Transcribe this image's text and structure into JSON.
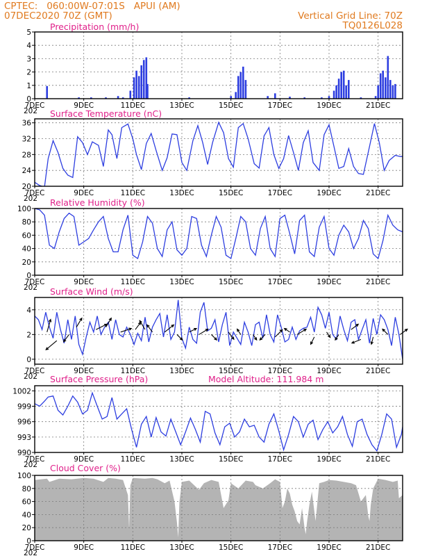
{
  "header": {
    "line1_left": "CPTEC:   060:00W-07:01S   APUI (AM)",
    "line2_left": "07DEC2020 70Z (GMT)",
    "line1_right": "Vertical Grid Line: 70Z",
    "line2_right": "TQ0126L028"
  },
  "colors": {
    "header": "#e07a1f",
    "title": "#e0208a",
    "series": "#2d3ee0",
    "cloud": "#b4b4b4",
    "wind_arrow": "#000000"
  },
  "x_axis": {
    "tick_labels": [
      "7DEC",
      "9DEC",
      "11DEC",
      "13DEC",
      "15DEC",
      "17DEC",
      "19DEC",
      "21DEC"
    ],
    "tick_days": [
      7,
      9,
      11,
      13,
      15,
      17,
      19,
      21
    ],
    "range_days": [
      7,
      22
    ],
    "sub_label": "202"
  },
  "chart_data": [
    {
      "type": "bar",
      "title": "Precipitation (mm/h)",
      "ylim": [
        0,
        5
      ],
      "yticks": [
        0,
        1,
        2,
        3,
        4,
        5
      ],
      "x": [
        7.5,
        8.8,
        9.3,
        9.9,
        10.4,
        10.6,
        10.9,
        11.05,
        11.15,
        11.25,
        11.35,
        11.45,
        11.55,
        11.6,
        13.3,
        15.0,
        15.2,
        15.3,
        15.4,
        15.5,
        15.6,
        16.5,
        16.8,
        17.4,
        18.0,
        18.7,
        19.0,
        19.2,
        19.3,
        19.4,
        19.5,
        19.6,
        19.7,
        19.8,
        20.3,
        20.9,
        21.0,
        21.1,
        21.2,
        21.3,
        21.4,
        21.5,
        21.6,
        21.7
      ],
      "values": [
        0.95,
        0.1,
        0.1,
        0.1,
        0.2,
        0.1,
        0.6,
        1.6,
        2.1,
        1.7,
        2.5,
        2.9,
        3.1,
        1.1,
        0.1,
        0.2,
        0.5,
        1.7,
        2.0,
        2.4,
        1.4,
        0.2,
        0.4,
        0.15,
        0.1,
        0.1,
        0.2,
        0.6,
        1.0,
        1.5,
        2.0,
        2.1,
        1.0,
        1.4,
        0.1,
        0.2,
        1.0,
        1.9,
        2.1,
        1.6,
        3.2,
        1.4,
        1.0,
        1.1
      ]
    },
    {
      "type": "line",
      "title": "Surface Temperature (nC)",
      "ylim": [
        20,
        37
      ],
      "yticks": [
        20,
        24,
        28,
        32,
        36
      ],
      "x": [
        7.0,
        7.2,
        7.4,
        7.55,
        7.75,
        7.95,
        8.15,
        8.35,
        8.55,
        8.75,
        8.95,
        9.15,
        9.35,
        9.6,
        9.8,
        10.0,
        10.15,
        10.35,
        10.55,
        10.8,
        11.0,
        11.15,
        11.35,
        11.55,
        11.75,
        11.95,
        12.2,
        12.4,
        12.6,
        12.8,
        13.0,
        13.2,
        13.45,
        13.65,
        13.85,
        14.05,
        14.25,
        14.5,
        14.7,
        14.9,
        15.1,
        15.3,
        15.5,
        15.7,
        15.95,
        16.15,
        16.35,
        16.55,
        16.75,
        16.95,
        17.15,
        17.35,
        17.55,
        17.75,
        17.95,
        18.15,
        18.35,
        18.6,
        18.8,
        19.0,
        19.2,
        19.4,
        19.6,
        19.8,
        20.0,
        20.2,
        20.4,
        20.65,
        20.85,
        21.05,
        21.25,
        21.45,
        21.7,
        21.9,
        22.0
      ],
      "values": [
        21.0,
        20.2,
        19.8,
        27.0,
        31.5,
        28.5,
        24.5,
        22.8,
        22.2,
        32.5,
        31.0,
        28.0,
        31.2,
        30.3,
        25.0,
        34.2,
        33.0,
        27.0,
        34.8,
        35.7,
        32.0,
        28.0,
        24.2,
        30.8,
        33.3,
        29.0,
        24.0,
        27.2,
        33.2,
        33.0,
        26.0,
        24.0,
        31.5,
        35.3,
        31.0,
        25.5,
        31.0,
        36.1,
        33.5,
        27.0,
        24.8,
        34.8,
        35.8,
        32.0,
        25.7,
        24.6,
        32.7,
        34.8,
        28.0,
        24.5,
        27.0,
        32.8,
        28.5,
        24.0,
        31.0,
        34.0,
        26.0,
        24.0,
        33.0,
        35.5,
        30.0,
        24.5,
        25.0,
        29.5,
        25.0,
        23.2,
        23.0,
        30.0,
        35.8,
        31.0,
        24.0,
        26.5,
        27.8,
        27.5,
        27.5
      ]
    },
    {
      "type": "line",
      "title": "Relative Humidity (%)",
      "ylim": [
        0,
        100
      ],
      "yticks": [
        0,
        20,
        40,
        60,
        80,
        100
      ],
      "x": [
        7.0,
        7.2,
        7.4,
        7.6,
        7.8,
        8.0,
        8.2,
        8.4,
        8.6,
        8.8,
        9.0,
        9.2,
        9.4,
        9.6,
        9.8,
        10.0,
        10.2,
        10.4,
        10.6,
        10.8,
        11.0,
        11.2,
        11.4,
        11.6,
        11.8,
        12.0,
        12.2,
        12.4,
        12.6,
        12.8,
        13.0,
        13.2,
        13.4,
        13.6,
        13.8,
        14.0,
        14.2,
        14.4,
        14.6,
        14.8,
        15.0,
        15.2,
        15.4,
        15.6,
        15.8,
        16.0,
        16.2,
        16.4,
        16.6,
        16.8,
        17.0,
        17.2,
        17.4,
        17.6,
        17.8,
        18.0,
        18.2,
        18.4,
        18.6,
        18.8,
        19.0,
        19.2,
        19.4,
        19.6,
        19.8,
        20.0,
        20.2,
        20.4,
        20.6,
        20.8,
        21.0,
        21.2,
        21.4,
        21.6,
        21.8,
        22.0
      ],
      "values": [
        100,
        98,
        90,
        45,
        40,
        65,
        85,
        93,
        88,
        45,
        50,
        55,
        68,
        80,
        88,
        55,
        35,
        35,
        68,
        90,
        30,
        25,
        50,
        88,
        78,
        40,
        28,
        68,
        80,
        38,
        30,
        40,
        88,
        85,
        45,
        28,
        60,
        88,
        72,
        30,
        25,
        55,
        88,
        80,
        40,
        30,
        70,
        88,
        40,
        28,
        85,
        90,
        62,
        32,
        82,
        90,
        35,
        28,
        72,
        88,
        40,
        30,
        60,
        75,
        65,
        40,
        55,
        82,
        70,
        32,
        25,
        52,
        90,
        75,
        68,
        65
      ]
    },
    {
      "type": "line",
      "title": "Surface Wind (m/s)",
      "ylim": [
        -0.4,
        5
      ],
      "yticks": [
        0,
        2,
        4
      ],
      "x": [
        7.0,
        7.15,
        7.3,
        7.45,
        7.6,
        7.75,
        7.9,
        8.05,
        8.2,
        8.35,
        8.5,
        8.65,
        8.8,
        8.95,
        9.1,
        9.25,
        9.4,
        9.55,
        9.7,
        9.85,
        10.0,
        10.15,
        10.3,
        10.45,
        10.6,
        10.75,
        10.9,
        11.05,
        11.2,
        11.35,
        11.5,
        11.65,
        11.8,
        11.95,
        12.1,
        12.25,
        12.4,
        12.55,
        12.7,
        12.85,
        13.0,
        13.15,
        13.3,
        13.45,
        13.6,
        13.75,
        13.9,
        14.05,
        14.2,
        14.35,
        14.5,
        14.65,
        14.8,
        14.95,
        15.1,
        15.25,
        15.4,
        15.55,
        15.7,
        15.85,
        16.0,
        16.15,
        16.3,
        16.45,
        16.6,
        16.75,
        16.9,
        17.05,
        17.2,
        17.35,
        17.5,
        17.65,
        17.8,
        17.95,
        18.1,
        18.25,
        18.4,
        18.55,
        18.7,
        18.85,
        19.0,
        19.15,
        19.3,
        19.45,
        19.6,
        19.75,
        19.9,
        20.05,
        20.2,
        20.35,
        20.5,
        20.65,
        20.8,
        20.95,
        21.1,
        21.25,
        21.4,
        21.55,
        21.7,
        21.85,
        22.0
      ],
      "values": [
        3.5,
        3.2,
        2.4,
        3.8,
        2.6,
        1.7,
        3.8,
        2.4,
        1.3,
        3.2,
        1.6,
        3.5,
        1.2,
        0.4,
        1.8,
        3.0,
        2.2,
        3.5,
        2.0,
        2.6,
        3.0,
        1.6,
        3.2,
        2.0,
        1.8,
        2.6,
        2.0,
        1.2,
        2.1,
        1.5,
        3.4,
        1.4,
        2.6,
        3.2,
        3.7,
        1.8,
        3.6,
        1.6,
        2.2,
        4.8,
        1.7,
        0.9,
        2.6,
        1.6,
        1.3,
        3.8,
        4.6,
        2.3,
        2.5,
        3.2,
        1.4,
        2.8,
        3.8,
        1.1,
        2.2,
        1.7,
        1.2,
        3.0,
        2.2,
        1.1,
        2.8,
        3.0,
        1.7,
        3.6,
        2.0,
        1.4,
        3.6,
        2.6,
        1.4,
        1.6,
        2.6,
        1.6,
        2.3,
        2.5,
        2.6,
        3.4,
        2.2,
        4.2,
        3.6,
        2.5,
        3.8,
        2.0,
        1.6,
        3.5,
        2.4,
        1.5,
        3.0,
        3.2,
        1.6,
        2.4,
        3.2,
        1.3,
        3.3,
        2.0,
        3.6,
        3.2,
        2.4,
        1.1,
        3.4,
        2.0,
        0.0
      ],
      "arrows": [
        {
          "x": 7.5,
          "y": 2.2,
          "u": 2,
          "v": 7
        },
        {
          "x": 7.9,
          "y": 1.5,
          "u": -6,
          "v": -5
        },
        {
          "x": 8.4,
          "y": 2.0,
          "u": -3,
          "v": -4
        },
        {
          "x": 8.7,
          "y": 2.6,
          "u": 3,
          "v": 5
        },
        {
          "x": 9.5,
          "y": 2.4,
          "u": 6,
          "v": 3
        },
        {
          "x": 9.9,
          "y": 2.6,
          "u": 3,
          "v": 5
        },
        {
          "x": 10.5,
          "y": 2.2,
          "u": 6,
          "v": 2
        },
        {
          "x": 11.1,
          "y": 2.4,
          "u": 3,
          "v": 4
        },
        {
          "x": 11.5,
          "y": 2.4,
          "u": -3,
          "v": 5
        },
        {
          "x": 11.8,
          "y": 2.2,
          "u": -3,
          "v": 4
        },
        {
          "x": 12.3,
          "y": 2.2,
          "u": 5,
          "v": 4
        },
        {
          "x": 12.8,
          "y": 2.0,
          "u": 3,
          "v": -3
        },
        {
          "x": 13.3,
          "y": 2.2,
          "u": 4,
          "v": 2
        },
        {
          "x": 13.7,
          "y": 2.0,
          "u": 5,
          "v": 3
        },
        {
          "x": 14.2,
          "y": 2.0,
          "u": 3,
          "v": -3
        },
        {
          "x": 14.9,
          "y": 2.2,
          "u": 3,
          "v": -4
        },
        {
          "x": 15.4,
          "y": 2.0,
          "u": -2,
          "v": 3
        },
        {
          "x": 15.9,
          "y": 2.0,
          "u": 2,
          "v": -3
        },
        {
          "x": 16.4,
          "y": 2.0,
          "u": -3,
          "v": -3
        },
        {
          "x": 16.8,
          "y": 1.8,
          "u": 4,
          "v": 4
        },
        {
          "x": 17.4,
          "y": 2.2,
          "u": -3,
          "v": 2
        },
        {
          "x": 17.7,
          "y": 2.0,
          "u": 5,
          "v": 3
        },
        {
          "x": 18.4,
          "y": 1.8,
          "u": -2,
          "v": -4
        },
        {
          "x": 18.9,
          "y": 2.2,
          "u": 2,
          "v": -3
        },
        {
          "x": 19.4,
          "y": 2.0,
          "u": -2,
          "v": -3
        },
        {
          "x": 19.9,
          "y": 2.4,
          "u": 4,
          "v": 3
        },
        {
          "x": 20.3,
          "y": 1.6,
          "u": -5,
          "v": -2
        },
        {
          "x": 20.8,
          "y": 1.8,
          "u": -1,
          "v": -4
        },
        {
          "x": 21.4,
          "y": 2.0,
          "u": -3,
          "v": 3
        },
        {
          "x": 21.9,
          "y": 2.0,
          "u": 4,
          "v": 3
        }
      ]
    },
    {
      "type": "line",
      "title": "Surface Pressure (hPa)",
      "annotation": "Model Altitude: 111.984 m",
      "ylim": [
        990,
        1003
      ],
      "yticks": [
        990,
        993,
        996,
        999,
        1002
      ],
      "x": [
        7.0,
        7.2,
        7.4,
        7.55,
        7.75,
        7.95,
        8.15,
        8.35,
        8.55,
        8.75,
        8.95,
        9.15,
        9.35,
        9.55,
        9.75,
        9.95,
        10.15,
        10.35,
        10.55,
        10.75,
        10.95,
        11.15,
        11.35,
        11.55,
        11.75,
        11.95,
        12.15,
        12.35,
        12.55,
        12.75,
        12.95,
        13.15,
        13.35,
        13.55,
        13.75,
        13.95,
        14.15,
        14.35,
        14.55,
        14.75,
        14.95,
        15.15,
        15.35,
        15.55,
        15.75,
        15.95,
        16.15,
        16.35,
        16.55,
        16.75,
        16.95,
        17.15,
        17.35,
        17.55,
        17.75,
        17.95,
        18.15,
        18.35,
        18.55,
        18.75,
        18.95,
        19.15,
        19.35,
        19.55,
        19.75,
        19.95,
        20.15,
        20.35,
        20.55,
        20.75,
        20.95,
        21.15,
        21.35,
        21.55,
        21.75,
        21.95,
        22.0
      ],
      "values": [
        999.5,
        999.0,
        1000.0,
        1000.8,
        1001.0,
        998.2,
        997.3,
        999.0,
        1001.0,
        999.8,
        997.5,
        998.2,
        1001.6,
        999.0,
        996.5,
        997.0,
        1000.7,
        996.5,
        997.5,
        998.5,
        994.5,
        991.0,
        995.5,
        997.0,
        993.0,
        996.8,
        994.0,
        993.2,
        996.5,
        994.0,
        991.5,
        994.0,
        996.7,
        994.5,
        992.0,
        998.0,
        997.5,
        993.8,
        991.5,
        995.0,
        995.7,
        993.0,
        994.0,
        996.5,
        995.0,
        995.3,
        993.0,
        992.0,
        995.5,
        997.5,
        994.2,
        990.5,
        993.5,
        997.0,
        996.0,
        993.0,
        995.5,
        996.3,
        992.5,
        994.5,
        996.0,
        993.8,
        995.0,
        997.0,
        993.5,
        991.2,
        996.0,
        996.5,
        993.5,
        991.5,
        990.3,
        993.5,
        997.5,
        996.5,
        991.0,
        993.5,
        995.0
      ]
    },
    {
      "type": "area",
      "title": "Cloud Cover (%)",
      "ylim": [
        0,
        100
      ],
      "yticks": [
        0,
        20,
        40,
        60,
        80,
        100
      ],
      "x": [
        7.0,
        7.5,
        7.6,
        8.0,
        8.5,
        9.0,
        9.4,
        9.8,
        10.0,
        10.3,
        10.6,
        10.8,
        10.85,
        10.9,
        11.0,
        11.5,
        11.8,
        12.0,
        12.3,
        12.5,
        12.7,
        12.8,
        12.85,
        12.9,
        13.0,
        13.3,
        13.5,
        13.7,
        13.9,
        14.2,
        14.5,
        14.7,
        14.9,
        15.0,
        15.3,
        15.6,
        15.9,
        16.0,
        16.3,
        16.6,
        16.8,
        17.0,
        17.1,
        17.2,
        17.3,
        17.4,
        17.5,
        17.6,
        17.7,
        17.8,
        17.9,
        18.0,
        18.05,
        18.1,
        18.2,
        18.3,
        18.45,
        18.6,
        18.8,
        19.0,
        19.3,
        19.6,
        19.9,
        20.1,
        20.3,
        20.5,
        20.6,
        20.65,
        20.7,
        20.8,
        21.0,
        21.3,
        21.6,
        21.8,
        21.85,
        22.0
      ],
      "values": [
        93,
        95,
        90,
        95,
        94,
        96,
        95,
        90,
        96,
        95,
        93,
        70,
        18,
        85,
        96,
        95,
        96,
        94,
        88,
        92,
        60,
        28,
        5,
        60,
        90,
        92,
        85,
        78,
        88,
        93,
        90,
        50,
        62,
        88,
        80,
        92,
        90,
        85,
        80,
        88,
        94,
        90,
        50,
        60,
        80,
        72,
        55,
        45,
        30,
        25,
        50,
        20,
        10,
        28,
        55,
        75,
        30,
        88,
        90,
        93,
        92,
        90,
        88,
        85,
        60,
        70,
        38,
        30,
        55,
        80,
        95,
        93,
        90,
        92,
        65,
        70
      ]
    }
  ]
}
